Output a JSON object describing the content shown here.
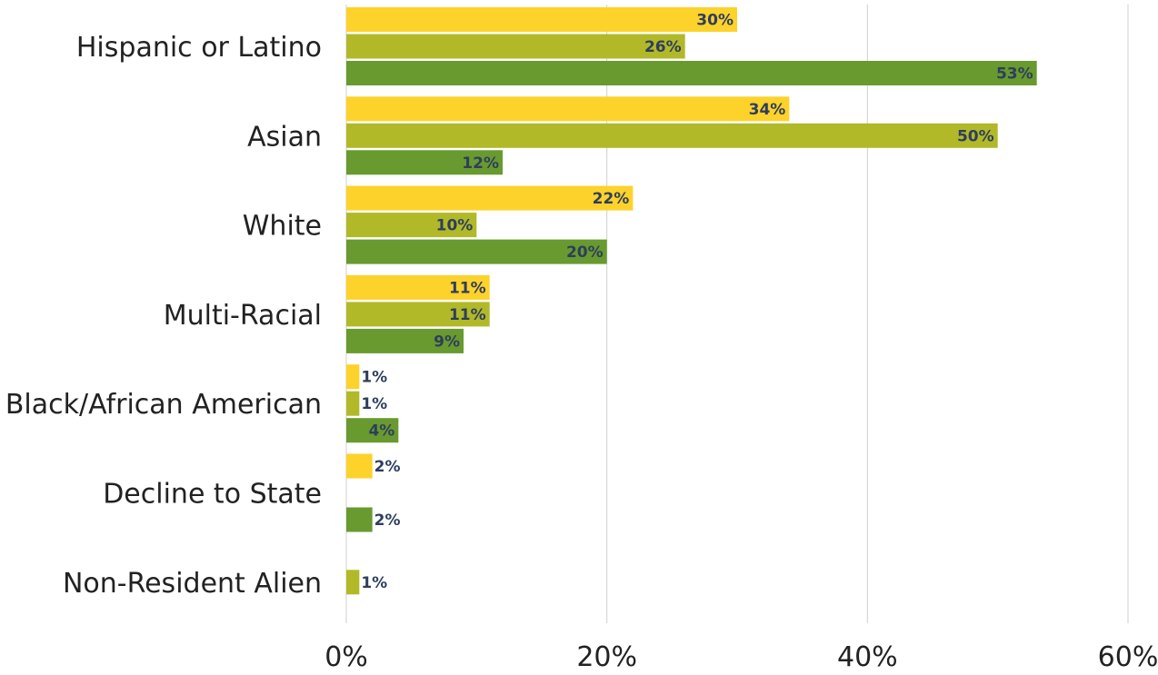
{
  "chart_data": {
    "type": "bar",
    "orientation": "horizontal",
    "categories": [
      "Hispanic or Latino",
      "Asian",
      "White",
      "Multi-Racial",
      "Black/African American",
      "Decline to State",
      "Non-Resident Alien"
    ],
    "series": [
      {
        "color": "#fdd22b",
        "values": [
          30,
          34,
          22,
          11,
          1,
          2,
          null
        ]
      },
      {
        "color": "#b1b928",
        "values": [
          26,
          50,
          10,
          11,
          1,
          null,
          1
        ]
      },
      {
        "color": "#689a2f",
        "values": [
          53,
          12,
          20,
          9,
          4,
          2,
          null
        ]
      }
    ],
    "data_labels": [
      [
        "30%",
        "34%",
        "22%",
        "11%",
        "1%",
        "2%",
        ""
      ],
      [
        "26%",
        "50%",
        "10%",
        "11%",
        "1%",
        "",
        "1%"
      ],
      [
        "53%",
        "12%",
        "20%",
        "9%",
        "4%",
        "2%",
        ""
      ]
    ],
    "xlim": [
      0,
      60
    ],
    "xticks": [
      0,
      20,
      40,
      60
    ],
    "xtick_labels": [
      "0%",
      "20%",
      "40%",
      "60%"
    ],
    "grid": true,
    "legend": "none",
    "title": "",
    "xlabel": "",
    "ylabel": ""
  }
}
